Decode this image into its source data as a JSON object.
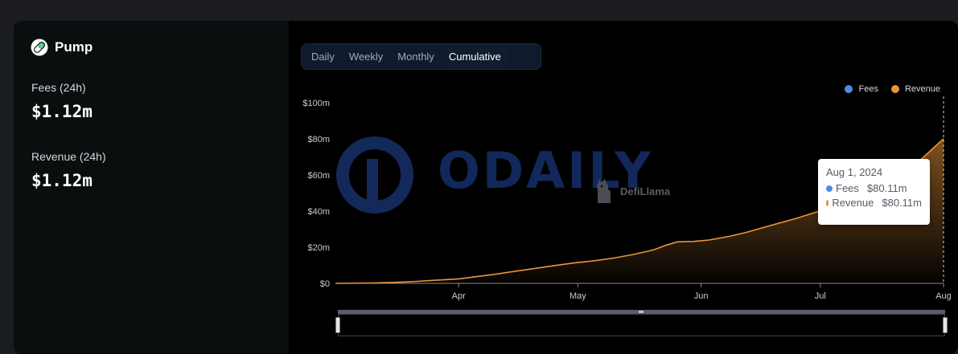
{
  "protocol": {
    "name": "Pump",
    "icon": "pill-icon"
  },
  "stats": [
    {
      "label": "Fees (24h)",
      "value": "$1.12m"
    },
    {
      "label": "Revenue (24h)",
      "value": "$1.12m"
    }
  ],
  "tabs": {
    "items": [
      "Daily",
      "Weekly",
      "Monthly",
      "Cumulative"
    ],
    "active": "Cumulative"
  },
  "legend": [
    {
      "name": "Fees",
      "color": "#4a90e2"
    },
    {
      "name": "Revenue",
      "color": "#e8953a"
    }
  ],
  "tooltip": {
    "date": "Aug 1, 2024",
    "rows": [
      {
        "label": "Fees",
        "value": "$80.11m",
        "color": "#4a90e2"
      },
      {
        "label": "Revenue",
        "value": "$80.11m",
        "color": "#e8953a"
      }
    ]
  },
  "watermark": {
    "text": "ODAILY",
    "defillama": "DefiLlama"
  },
  "colors": {
    "accent": "#e8953a",
    "fees": "#4a90e2",
    "background": "#000000"
  },
  "chart_data": {
    "type": "area",
    "x_ticks": [
      "Apr",
      "May",
      "Jun",
      "Jul",
      "Aug"
    ],
    "y_ticks": [
      "$0",
      "$20m",
      "$40m",
      "$60m",
      "$80m",
      "$100m"
    ],
    "ylim": [
      0,
      100
    ],
    "y_unit": "$m",
    "xlim": [
      "2024-03-01",
      "2024-08-01"
    ],
    "grid": false,
    "legend_position": "top-right",
    "series": [
      {
        "name": "Revenue",
        "color": "#e8953a",
        "points": [
          [
            "2024-03-01",
            0.0
          ],
          [
            "2024-03-10",
            0.2
          ],
          [
            "2024-03-15",
            0.5
          ],
          [
            "2024-03-20",
            0.9
          ],
          [
            "2024-03-25",
            1.6
          ],
          [
            "2024-04-01",
            2.5
          ],
          [
            "2024-04-05",
            3.6
          ],
          [
            "2024-04-10",
            5.0
          ],
          [
            "2024-04-15",
            6.6
          ],
          [
            "2024-04-20",
            8.2
          ],
          [
            "2024-04-25",
            9.8
          ],
          [
            "2024-04-30",
            11.3
          ],
          [
            "2024-05-05",
            12.5
          ],
          [
            "2024-05-10",
            14.0
          ],
          [
            "2024-05-15",
            16.0
          ],
          [
            "2024-05-20",
            18.5
          ],
          [
            "2024-05-23",
            21.0
          ],
          [
            "2024-05-26",
            23.0
          ],
          [
            "2024-05-30",
            23.2
          ],
          [
            "2024-06-03",
            24.0
          ],
          [
            "2024-06-08",
            26.0
          ],
          [
            "2024-06-12",
            28.0
          ],
          [
            "2024-06-16",
            30.5
          ],
          [
            "2024-06-20",
            33.0
          ],
          [
            "2024-06-25",
            36.0
          ],
          [
            "2024-06-30",
            39.5
          ],
          [
            "2024-07-05",
            43.0
          ],
          [
            "2024-07-10",
            46.5
          ],
          [
            "2024-07-15",
            50.5
          ],
          [
            "2024-07-20",
            57.0
          ],
          [
            "2024-07-25",
            66.0
          ],
          [
            "2024-07-29",
            74.0
          ],
          [
            "2024-08-01",
            80.11
          ]
        ]
      }
    ]
  }
}
